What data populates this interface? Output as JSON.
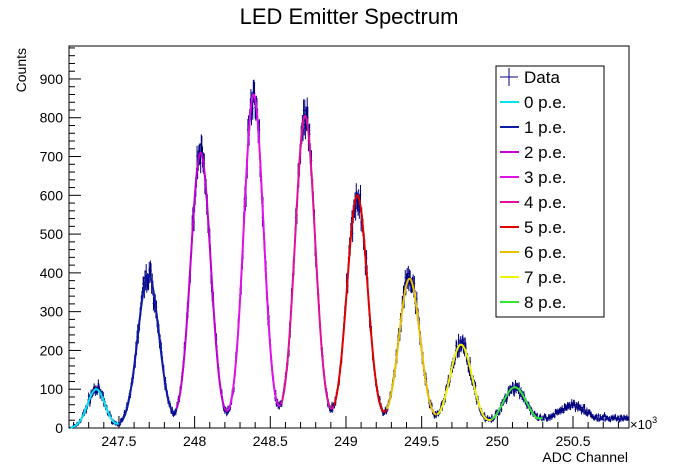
{
  "chart_data": {
    "type": "line",
    "title": "LED Emitter Spectrum",
    "xlabel": "ADC Channel",
    "ylabel": "Counts",
    "x_multiplier_label": "×10",
    "x_multiplier_exp": "3",
    "xlim": [
      247.17,
      250.87
    ],
    "ylim": [
      0,
      985
    ],
    "x_ticks": [
      247.5,
      248,
      248.5,
      249,
      249.5,
      250,
      250.5
    ],
    "x_tick_labels": [
      "247.5",
      "248",
      "248.5",
      "249",
      "249.5",
      "250",
      "250.5"
    ],
    "y_ticks": [
      0,
      100,
      200,
      300,
      400,
      500,
      600,
      700,
      800,
      900
    ],
    "y_tick_labels": [
      "0",
      "100",
      "200",
      "300",
      "400",
      "500",
      "600",
      "700",
      "800",
      "900"
    ],
    "grid": false,
    "legend_position": "top-right",
    "data_color": "#000080",
    "data_label": "Data",
    "peaks": [
      {
        "name": "0 p.e.",
        "color": "#00e5ee",
        "mean": 247.35,
        "amp": 100,
        "sigma": 0.058,
        "range": [
          247.18,
          247.5
        ]
      },
      {
        "name": "1 p.e.",
        "color": "#0b1ba6",
        "mean": 247.695,
        "amp": 395,
        "sigma": 0.07,
        "range": [
          247.5,
          247.88
        ]
      },
      {
        "name": "2 p.e.",
        "color": "#c000d0",
        "mean": 248.04,
        "amp": 710,
        "sigma": 0.066,
        "range": [
          247.88,
          248.22
        ]
      },
      {
        "name": "3 p.e.",
        "color": "#e010e8",
        "mean": 248.39,
        "amp": 860,
        "sigma": 0.065,
        "range": [
          248.22,
          248.57
        ]
      },
      {
        "name": "4 p.e.",
        "color": "#e0109a",
        "mean": 248.73,
        "amp": 805,
        "sigma": 0.066,
        "range": [
          248.57,
          248.92
        ]
      },
      {
        "name": "5 p.e.",
        "color": "#e00000",
        "mean": 249.075,
        "amp": 600,
        "sigma": 0.068,
        "range": [
          248.92,
          249.27
        ]
      },
      {
        "name": "6 p.e.",
        "color": "#e6c000",
        "mean": 249.42,
        "amp": 385,
        "sigma": 0.07,
        "range": [
          249.27,
          249.6
        ]
      },
      {
        "name": "7 p.e.",
        "color": "#f2f200",
        "mean": 249.76,
        "amp": 215,
        "sigma": 0.074,
        "range": [
          249.6,
          249.96
        ]
      },
      {
        "name": "8 p.e.",
        "color": "#33e633",
        "mean": 250.115,
        "amp": 105,
        "sigma": 0.08,
        "range": [
          249.96,
          250.3
        ]
      }
    ],
    "tail": {
      "mean": 250.5,
      "amp": 60,
      "sigma": 0.11,
      "floor": 25
    }
  }
}
